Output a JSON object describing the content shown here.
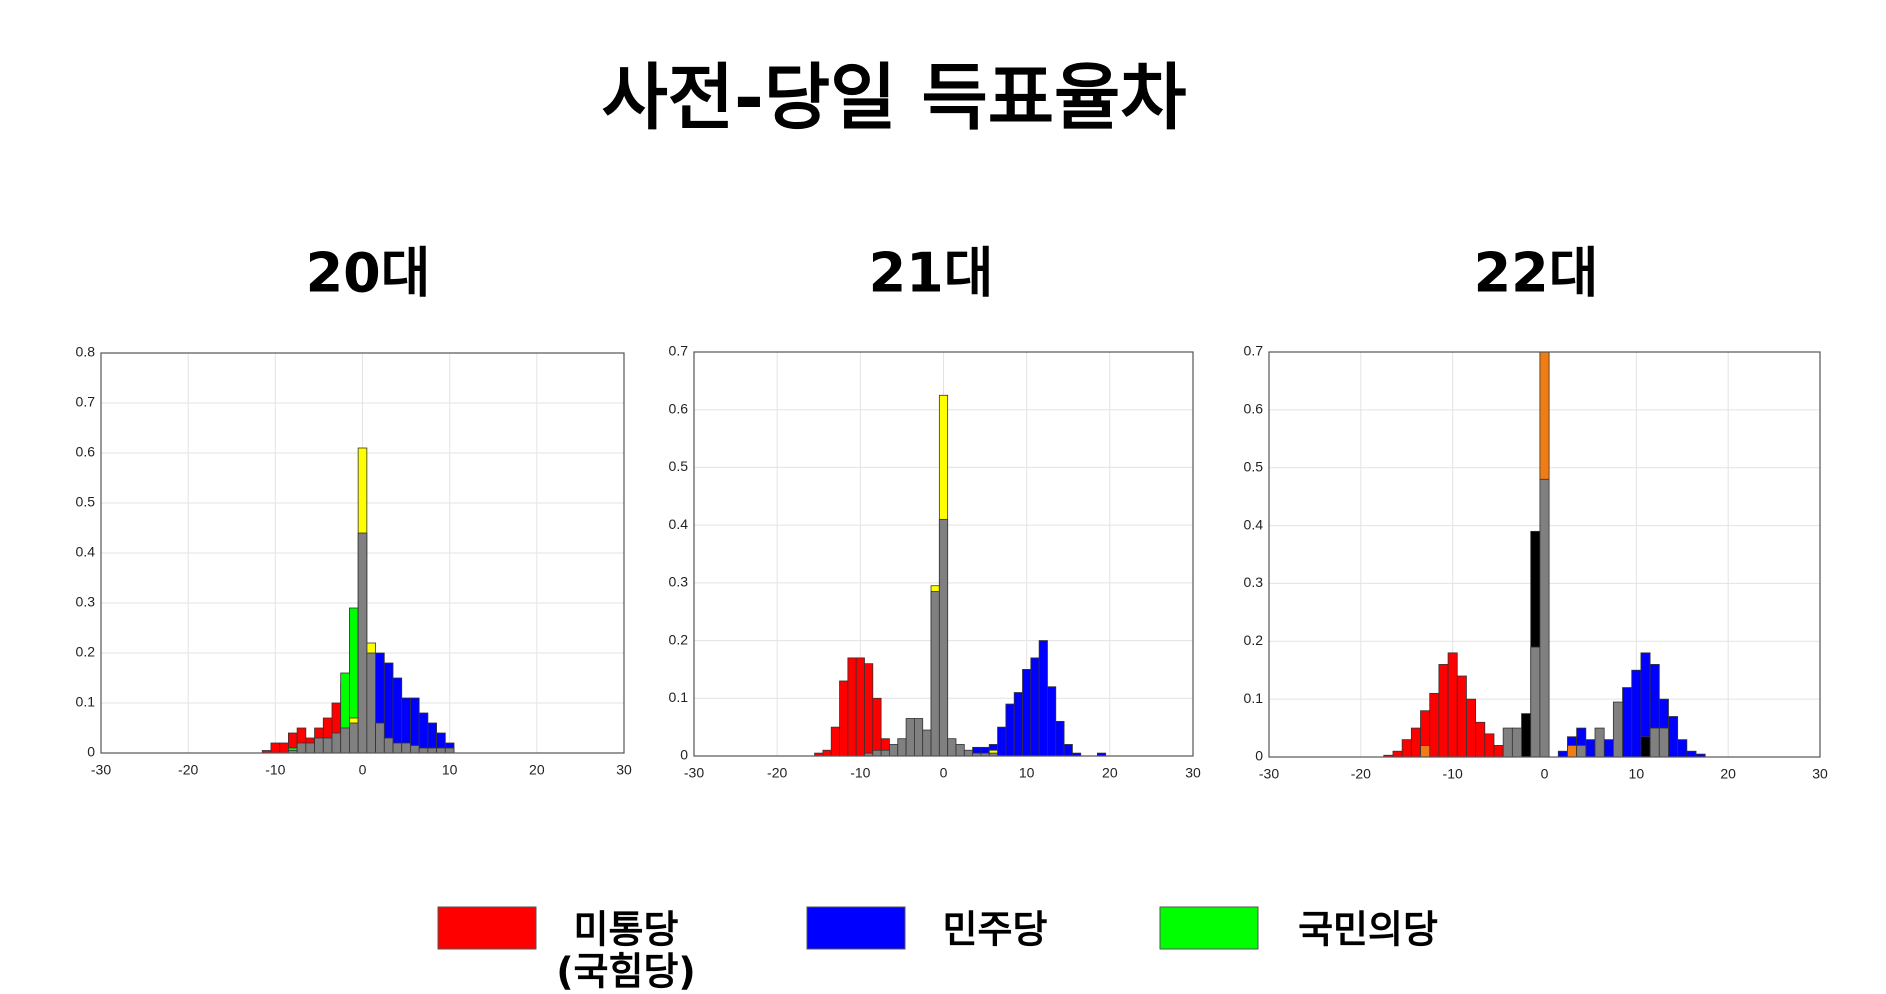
{
  "title": "사전-당일 득표율차",
  "legend": [
    {
      "label": [
        "미통당",
        "(국힘당)"
      ],
      "color": "#ff0000"
    },
    {
      "label": [
        "민주당"
      ],
      "color": "#0000ff"
    },
    {
      "label": [
        "국민의당"
      ],
      "color": "#00ff00"
    }
  ],
  "chart_data": [
    {
      "type": "histogram",
      "title": "20대",
      "xlim": [
        -30,
        30
      ],
      "xticks": [
        -30,
        -20,
        -10,
        0,
        10,
        20,
        30
      ],
      "ylim": [
        0,
        0.8
      ],
      "yticks": [
        0,
        0.1,
        0.2,
        0.3,
        0.4,
        0.5,
        0.6,
        0.7,
        0.8
      ],
      "grid": true,
      "bins": [
        -12.5,
        -11.5,
        -10.5,
        -9.5,
        -8.5,
        -7.5,
        -6.5,
        -5.5,
        -4.5,
        -3.5,
        -2.5,
        -1.5,
        -0.5,
        0.5,
        1.5,
        2.5,
        3.5,
        4.5,
        5.5,
        6.5,
        7.5,
        8.5,
        9.5,
        10.5,
        11.5
      ],
      "series": [
        {
          "color": "#ff0000",
          "values": [
            0,
            0.005,
            0.02,
            0.02,
            0.04,
            0.05,
            0.03,
            0.05,
            0.07,
            0.1,
            0.14,
            0.05,
            0,
            0,
            0,
            0,
            0,
            0,
            0,
            0,
            0,
            0,
            0,
            0
          ]
        },
        {
          "color": "#0000ff",
          "values": [
            0,
            0,
            0,
            0,
            0,
            0,
            0,
            0,
            0,
            0,
            0,
            0,
            0,
            0.19,
            0.2,
            0.18,
            0.15,
            0.11,
            0.11,
            0.08,
            0.06,
            0.04,
            0.02,
            0
          ]
        },
        {
          "color": "#00ff00",
          "values": [
            0,
            0,
            0,
            0,
            0.01,
            0,
            0,
            0,
            0,
            0,
            0.16,
            0.29,
            0,
            0,
            0,
            0,
            0,
            0,
            0,
            0,
            0,
            0,
            0,
            0
          ]
        },
        {
          "color": "#ffff00",
          "values": [
            0,
            0,
            0,
            0,
            0,
            0,
            0,
            0,
            0,
            0,
            0,
            0.07,
            0.61,
            0.22,
            0,
            0,
            0,
            0,
            0,
            0,
            0,
            0,
            0,
            0
          ]
        },
        {
          "color": "#808080",
          "values": [
            0,
            0,
            0,
            0,
            0.005,
            0.02,
            0.02,
            0.03,
            0.03,
            0.04,
            0.05,
            0.06,
            0.44,
            0.2,
            0.06,
            0.03,
            0.02,
            0.02,
            0.015,
            0.01,
            0.01,
            0.01,
            0.01,
            0
          ]
        }
      ]
    },
    {
      "type": "histogram",
      "title": "21대",
      "xlim": [
        -30,
        30
      ],
      "xticks": [
        -30,
        -20,
        -10,
        0,
        10,
        20,
        30
      ],
      "ylim": [
        0,
        0.7
      ],
      "yticks": [
        0,
        0.1,
        0.2,
        0.3,
        0.4,
        0.5,
        0.6,
        0.7
      ],
      "grid": true,
      "bins": [
        -16.5,
        -15.5,
        -14.5,
        -13.5,
        -12.5,
        -11.5,
        -10.5,
        -9.5,
        -8.5,
        -7.5,
        -6.5,
        -5.5,
        -4.5,
        -3.5,
        -2.5,
        -1.5,
        -0.5,
        0.5,
        1.5,
        2.5,
        3.5,
        4.5,
        5.5,
        6.5,
        7.5,
        8.5,
        9.5,
        10.5,
        11.5,
        12.5,
        13.5,
        14.5,
        15.5,
        16.5,
        17.5,
        18.5,
        19.5,
        20.5
      ],
      "series": [
        {
          "color": "#ff0000",
          "values": [
            0,
            0.005,
            0.01,
            0.05,
            0.13,
            0.17,
            0.17,
            0.16,
            0.1,
            0.03,
            0,
            0,
            0,
            0,
            0,
            0,
            0,
            0,
            0,
            0,
            0,
            0,
            0,
            0,
            0,
            0,
            0,
            0,
            0,
            0,
            0,
            0,
            0,
            0,
            0,
            0,
            0
          ]
        },
        {
          "color": "#0000ff",
          "values": [
            0,
            0,
            0,
            0,
            0,
            0,
            0,
            0,
            0,
            0,
            0,
            0,
            0,
            0,
            0,
            0,
            0,
            0,
            0,
            0,
            0.015,
            0.015,
            0.02,
            0.05,
            0.09,
            0.11,
            0.15,
            0.17,
            0.2,
            0.12,
            0.06,
            0.02,
            0.005,
            0,
            0,
            0.005,
            0
          ]
        },
        {
          "color": "#ffff00",
          "values": [
            0,
            0,
            0,
            0,
            0,
            0,
            0,
            0,
            0,
            0,
            0,
            0,
            0,
            0,
            0,
            0.295,
            0.625,
            0,
            0,
            0,
            0,
            0,
            0.01,
            0,
            0,
            0,
            0,
            0,
            0,
            0,
            0,
            0,
            0,
            0,
            0,
            0,
            0
          ]
        },
        {
          "color": "#808080",
          "values": [
            0,
            0,
            0,
            0,
            0,
            0,
            0,
            0.005,
            0.01,
            0.01,
            0.02,
            0.03,
            0.065,
            0.065,
            0.045,
            0.285,
            0.41,
            0.03,
            0.02,
            0.01,
            0.005,
            0.005,
            0.005,
            0,
            0,
            0,
            0,
            0,
            0,
            0,
            0,
            0,
            0,
            0,
            0,
            0,
            0
          ]
        }
      ]
    },
    {
      "type": "histogram",
      "title": "22대",
      "xlim": [
        -30,
        30
      ],
      "xticks": [
        -30,
        -20,
        -10,
        0,
        10,
        20,
        30
      ],
      "ylim": [
        0,
        0.7
      ],
      "yticks": [
        0,
        0.1,
        0.2,
        0.3,
        0.4,
        0.5,
        0.6,
        0.7
      ],
      "grid": true,
      "bins": [
        -18.5,
        -17.5,
        -16.5,
        -15.5,
        -14.5,
        -13.5,
        -12.5,
        -11.5,
        -10.5,
        -9.5,
        -8.5,
        -7.5,
        -6.5,
        -5.5,
        -4.5,
        -3.5,
        -2.5,
        -1.5,
        -0.5,
        0.5,
        1.5,
        2.5,
        3.5,
        4.5,
        5.5,
        6.5,
        7.5,
        8.5,
        9.5,
        10.5,
        11.5,
        12.5,
        13.5,
        14.5,
        15.5,
        16.5,
        17.5,
        18.5
      ],
      "series": [
        {
          "color": "#ff0000",
          "values": [
            0,
            0.003,
            0.01,
            0.03,
            0.05,
            0.08,
            0.11,
            0.16,
            0.18,
            0.14,
            0.1,
            0.06,
            0.04,
            0.02,
            0.01,
            0.005,
            0,
            0,
            0,
            0,
            0,
            0,
            0,
            0,
            0,
            0,
            0,
            0,
            0,
            0,
            0,
            0,
            0,
            0,
            0,
            0,
            0
          ]
        },
        {
          "color": "#0000ff",
          "values": [
            0,
            0,
            0,
            0,
            0,
            0,
            0,
            0,
            0,
            0,
            0,
            0,
            0,
            0,
            0,
            0,
            0,
            0,
            0,
            0,
            0.01,
            0.035,
            0.05,
            0.03,
            0.03,
            0.03,
            0.09,
            0.12,
            0.15,
            0.18,
            0.16,
            0.1,
            0.07,
            0.03,
            0.01,
            0.005,
            0
          ]
        },
        {
          "color": "#f07c14",
          "values": [
            0,
            0,
            0,
            0,
            0,
            0.02,
            0,
            0,
            0,
            0,
            0,
            0,
            0,
            0,
            0,
            0,
            0,
            0,
            0.7,
            0,
            0,
            0.02,
            0,
            0,
            0,
            0,
            0,
            0,
            0,
            0,
            0,
            0,
            0,
            0,
            0,
            0,
            0
          ]
        },
        {
          "color": "#000000",
          "values": [
            0,
            0,
            0,
            0,
            0,
            0,
            0,
            0,
            0,
            0,
            0,
            0,
            0,
            0,
            0,
            0,
            0.075,
            0.39,
            0,
            0,
            0,
            0,
            0,
            0,
            0,
            0,
            0,
            0,
            0,
            0.035,
            0,
            0,
            0,
            0,
            0,
            0,
            0
          ]
        },
        {
          "color": "#808080",
          "values": [
            0,
            0,
            0,
            0,
            0,
            0,
            0,
            0,
            0,
            0,
            0,
            0,
            0,
            0,
            0.05,
            0.05,
            0,
            0.19,
            0.48,
            0,
            0,
            0,
            0.02,
            0,
            0.05,
            0,
            0.095,
            0,
            0,
            0,
            0.05,
            0.05,
            0,
            0,
            0,
            0,
            0
          ]
        }
      ]
    }
  ]
}
